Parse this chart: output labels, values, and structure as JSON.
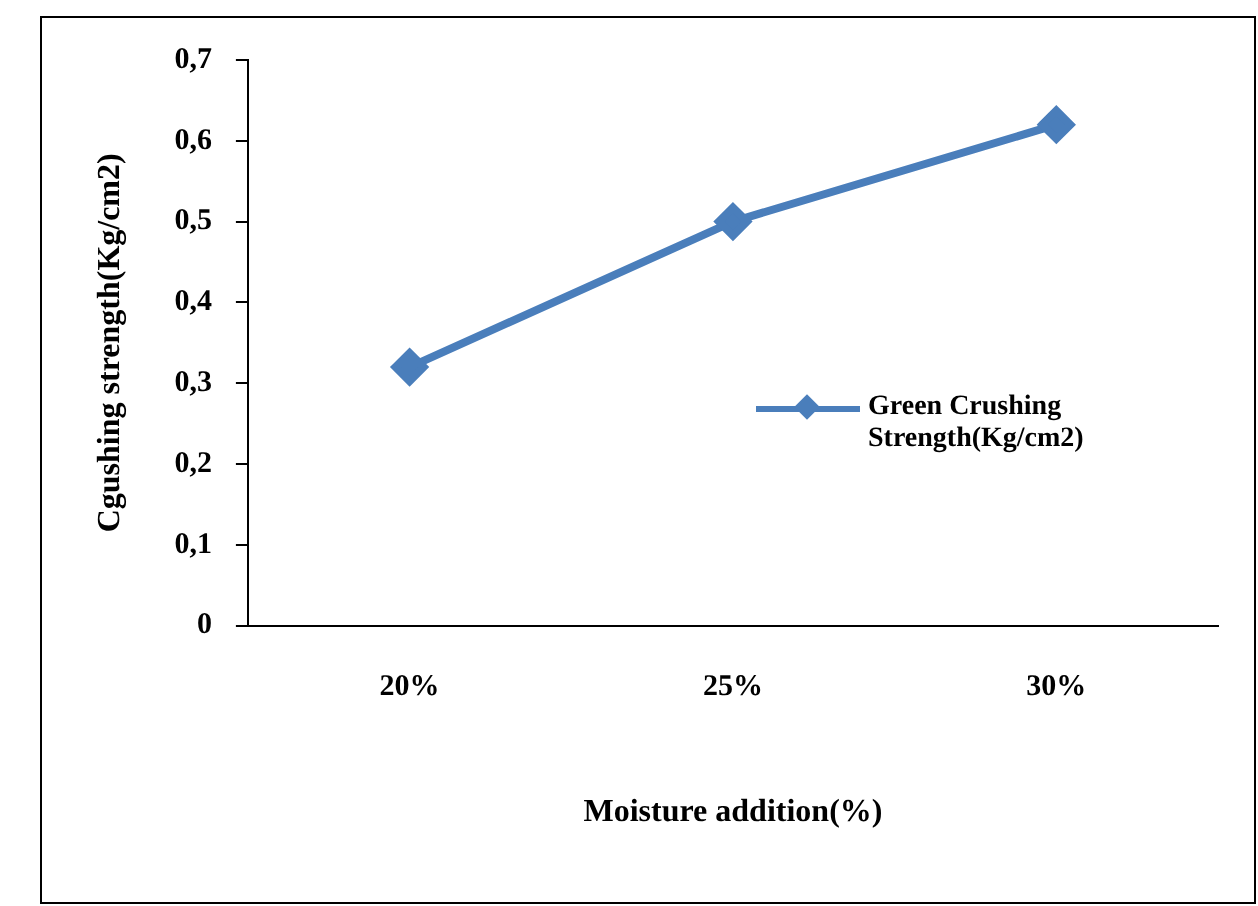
{
  "chart_data": {
    "type": "line",
    "xlabel": "Moisture addition(%)",
    "ylabel": "Cgushing strength(Kg/cm2)",
    "categories": [
      "20%",
      "25%",
      "30%"
    ],
    "series": [
      {
        "name": "Green Crushing Strength(Kg/cm2)",
        "color": "#4a7ebb",
        "values": [
          0.32,
          0.5,
          0.62
        ]
      }
    ],
    "ylim": [
      0,
      0.7
    ],
    "yticks": [
      0,
      {
        "value": 0.1,
        "label": "0,1"
      },
      {
        "value": 0.2,
        "label": "0,2"
      },
      {
        "value": 0.3,
        "label": "0,3"
      },
      {
        "value": 0.4,
        "label": "0,4"
      },
      {
        "value": 0.5,
        "label": "0,5"
      },
      {
        "value": 0.6,
        "label": "0,6"
      },
      {
        "value": 0.7,
        "label": "0,7"
      }
    ],
    "grid": false,
    "legend": "right",
    "marker": "diamond",
    "line_style": "solid"
  }
}
